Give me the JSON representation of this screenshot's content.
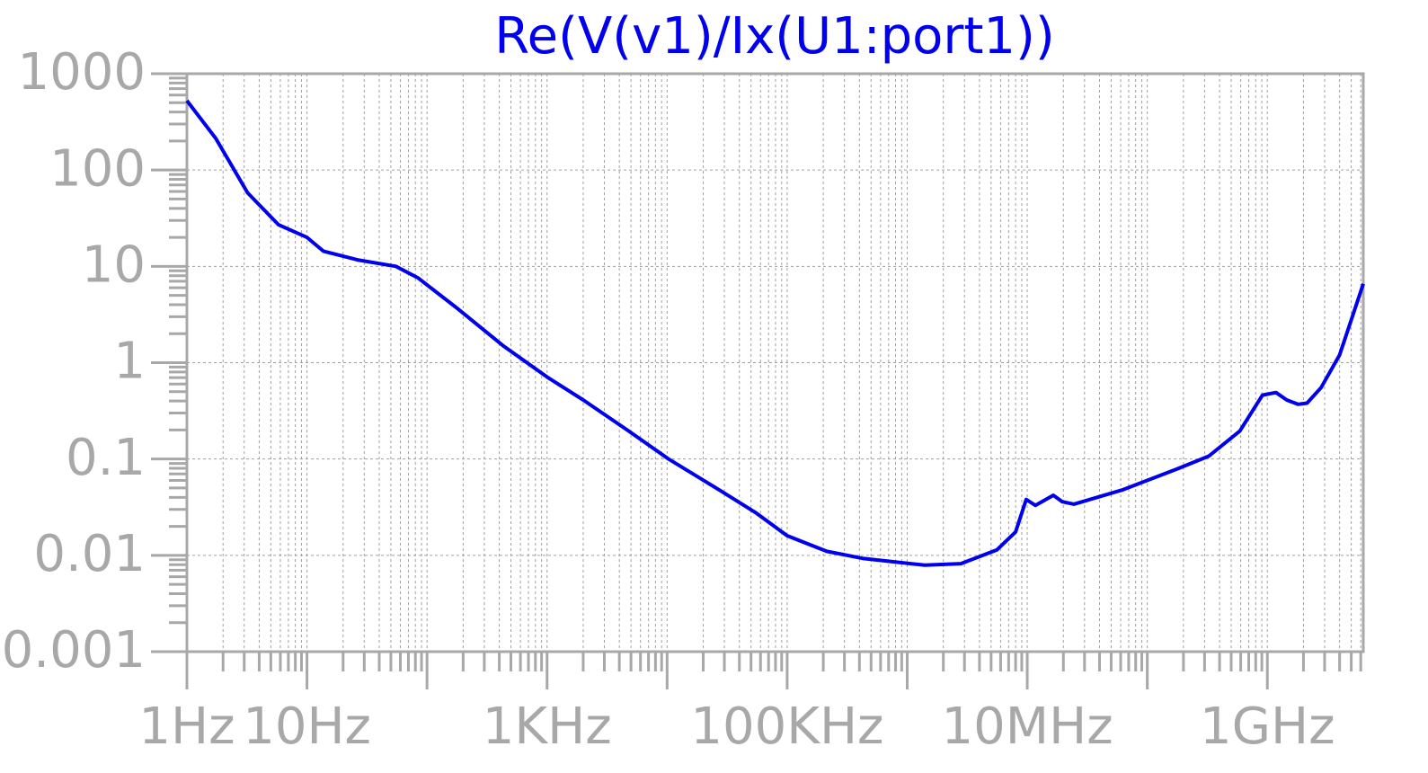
{
  "chart_data": {
    "type": "line",
    "title": "Re(V(v1)/Ix(U1:port1))",
    "x": [
      1,
      1.74,
      3.2,
      5.8,
      10,
      13.7,
      27,
      55,
      84,
      182,
      430,
      1000,
      2000,
      4800,
      10300,
      27000,
      54000,
      100000,
      214000,
      425000,
      1400000,
      2800000,
      5600000,
      8000000,
      9800000,
      11700000,
      16500000,
      19600000,
      24500000,
      63000000,
      178000000,
      325000000,
      590000000,
      910000000,
      1180000000,
      1450000000,
      1800000000,
      2140000000,
      2800000000,
      4000000000,
      6300000000
    ],
    "values": [
      525,
      213,
      58,
      27,
      20,
      14.4,
      11.6,
      10,
      7.6,
      3.6,
      1.5,
      0.71,
      0.41,
      0.195,
      0.1,
      0.048,
      0.028,
      0.016,
      0.011,
      0.0093,
      0.0079,
      0.0082,
      0.0114,
      0.0175,
      0.038,
      0.033,
      0.042,
      0.036,
      0.034,
      0.048,
      0.079,
      0.107,
      0.195,
      0.46,
      0.49,
      0.41,
      0.37,
      0.38,
      0.55,
      1.2,
      6.6
    ],
    "color": "#0000ee",
    "xscale": "log",
    "yscale": "log",
    "grid": true,
    "xlim": [
      1,
      6300000000
    ],
    "ylim": [
      0.001,
      1000
    ],
    "xticks": [
      {
        "value": 1,
        "label": "1Hz"
      },
      {
        "value": 10,
        "label": "10Hz"
      },
      {
        "value": 100,
        "label": null
      },
      {
        "value": 1000,
        "label": "1KHz"
      },
      {
        "value": 10000,
        "label": null
      },
      {
        "value": 100000,
        "label": "100KHz"
      },
      {
        "value": 1000000,
        "label": null
      },
      {
        "value": 10000000,
        "label": "10MHz"
      },
      {
        "value": 100000000,
        "label": null
      },
      {
        "value": 1000000000,
        "label": "1GHz"
      }
    ],
    "yticks": [
      1000,
      100,
      10,
      1,
      0.1,
      0.01,
      0.001
    ]
  }
}
